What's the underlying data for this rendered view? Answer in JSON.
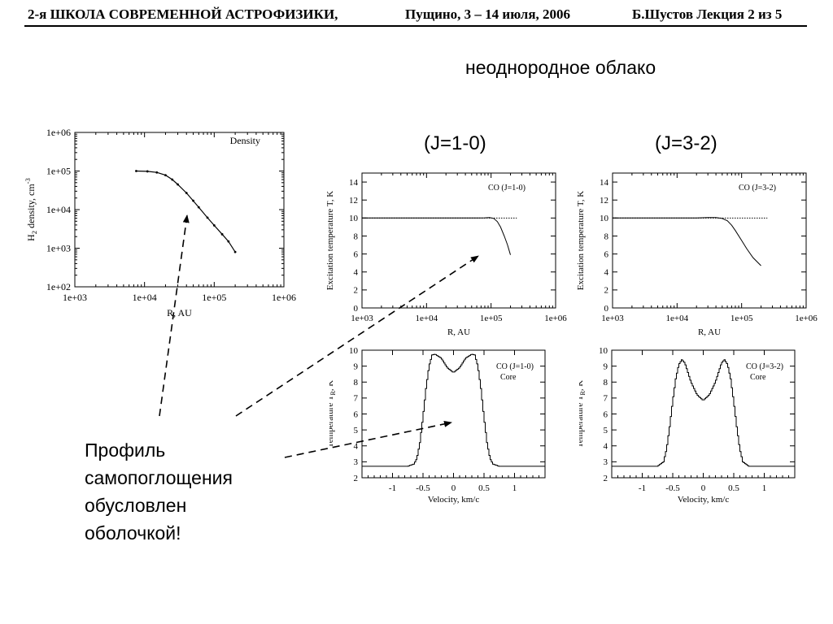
{
  "header": {
    "school": "2-я ШКОЛА СОВРЕМЕННОЙ АСТРОФИЗИКИ,",
    "place_date": "Пущино, 3 – 14 июля, 2006",
    "lecture": "Б.Шустов Лекция 2 из 5"
  },
  "slide_title": "неоднородное облако",
  "panel_titles": {
    "j10": "(J=1-0)",
    "j32": "(J=3-2)"
  },
  "caption": [
    "Профиль",
    "самопоглощения",
    "обусловлен",
    "оболочкой!"
  ],
  "colors": {
    "line": "#000000",
    "background": "#ffffff"
  },
  "chart_data": [
    {
      "id": "density",
      "type": "line",
      "title": "Density",
      "xlabel": "R, AU",
      "ylabel_parts": [
        "H",
        "2",
        " density, cm",
        "-3"
      ],
      "xscale": "log",
      "yscale": "log",
      "xlim": [
        1000,
        1000000
      ],
      "ylim": [
        100,
        1000000
      ],
      "xticks": [
        1000,
        10000,
        100000,
        1000000
      ],
      "xtick_labels": [
        "1e+03",
        "1e+04",
        "1e+05",
        "1e+06"
      ],
      "yticks": [
        100,
        1000,
        10000,
        100000,
        1000000
      ],
      "ytick_labels": [
        "1e+02",
        "1e+03",
        "1e+04",
        "1e+05",
        "1e+06"
      ],
      "series": [
        {
          "values": [
            [
              7600,
              100000
            ],
            [
              11000,
              98000
            ],
            [
              15000,
              92000
            ],
            [
              20000,
              78000
            ],
            [
              25000,
              60000
            ],
            [
              30000,
              45000
            ],
            [
              40000,
              27000
            ],
            [
              50000,
              17000
            ],
            [
              60000,
              11500
            ],
            [
              80000,
              6200
            ],
            [
              100000,
              3900
            ],
            [
              130000,
              2300
            ],
            [
              160000,
              1500
            ],
            [
              200000,
              800
            ]
          ]
        }
      ]
    },
    {
      "id": "tex-j10",
      "type": "line",
      "legend": "CO (J=1-0)",
      "xlabel": "R, AU",
      "ylabel": "Excitation temperature T, K",
      "xscale": "log",
      "xlim": [
        1000,
        1000000
      ],
      "ylim": [
        0,
        15
      ],
      "xticks": [
        1000,
        10000,
        100000,
        1000000
      ],
      "xtick_labels": [
        "1e+03",
        "1e+04",
        "1e+05",
        "1e+06"
      ],
      "yticks": [
        0,
        2,
        4,
        6,
        8,
        10,
        12,
        14
      ],
      "ytick_labels": [
        "0",
        "2",
        "4",
        "6",
        "8",
        "10",
        "12",
        "14"
      ],
      "reference_line": {
        "y": 10,
        "style": "dotted",
        "xmax": 250000
      },
      "series": [
        {
          "values": [
            [
              1000,
              10
            ],
            [
              60000,
              10
            ],
            [
              80000,
              10.02
            ],
            [
              95000,
              10.05
            ],
            [
              110000,
              9.95
            ],
            [
              125000,
              9.6
            ],
            [
              140000,
              9.0
            ],
            [
              160000,
              8.0
            ],
            [
              180000,
              7.0
            ],
            [
              200000,
              5.9
            ]
          ]
        }
      ]
    },
    {
      "id": "tex-j32",
      "type": "line",
      "legend": "CO (J=3-2)",
      "xlabel": "R, AU",
      "ylabel": "Excitation temperature T, K",
      "xscale": "log",
      "xlim": [
        1000,
        1000000
      ],
      "ylim": [
        0,
        15
      ],
      "xticks": [
        1000,
        10000,
        100000,
        1000000
      ],
      "xtick_labels": [
        "1e+03",
        "1e+04",
        "1e+05",
        "1e+06"
      ],
      "yticks": [
        0,
        2,
        4,
        6,
        8,
        10,
        12,
        14
      ],
      "ytick_labels": [
        "0",
        "2",
        "4",
        "6",
        "8",
        "10",
        "12",
        "14"
      ],
      "reference_line": {
        "y": 10,
        "style": "dotted",
        "xmax": 250000
      },
      "series": [
        {
          "values": [
            [
              1000,
              10
            ],
            [
              20000,
              10
            ],
            [
              30000,
              10.05
            ],
            [
              40000,
              10.05
            ],
            [
              50000,
              9.95
            ],
            [
              60000,
              9.7
            ],
            [
              70000,
              9.2
            ],
            [
              80000,
              8.6
            ],
            [
              100000,
              7.5
            ],
            [
              120000,
              6.6
            ],
            [
              150000,
              5.6
            ],
            [
              200000,
              4.7
            ]
          ]
        }
      ]
    },
    {
      "id": "spec-j10",
      "type": "line",
      "legend": [
        "CO (J=1-0)",
        "Core"
      ],
      "xlabel": "Velocity, km/c",
      "ylabel_parts": [
        "Temperature T",
        "R",
        ", K"
      ],
      "xlim": [
        -1.5,
        1.5
      ],
      "ylim": [
        2,
        10
      ],
      "xticks": [
        -1,
        -0.5,
        0,
        0.5,
        1
      ],
      "xtick_labels": [
        "-1",
        "-0.5",
        "0",
        "0.5",
        "1"
      ],
      "yticks": [
        2,
        3,
        4,
        5,
        6,
        7,
        8,
        9,
        10
      ],
      "ytick_labels": [
        "2",
        "3",
        "4",
        "5",
        "6",
        "7",
        "8",
        "9",
        "10"
      ],
      "step": 0.05,
      "series": [
        {
          "values": [
            [
              -1.5,
              2.72
            ],
            [
              -0.75,
              2.72
            ],
            [
              -0.65,
              2.85
            ],
            [
              -0.6,
              3.2
            ],
            [
              -0.55,
              4.2
            ],
            [
              -0.5,
              5.8
            ],
            [
              -0.45,
              7.6
            ],
            [
              -0.4,
              9.0
            ],
            [
              -0.35,
              9.7
            ],
            [
              -0.3,
              9.75
            ],
            [
              -0.2,
              9.5
            ],
            [
              -0.1,
              8.9
            ],
            [
              0,
              8.6
            ],
            [
              0.1,
              8.9
            ],
            [
              0.2,
              9.5
            ],
            [
              0.3,
              9.75
            ],
            [
              0.35,
              9.7
            ],
            [
              0.4,
              9.0
            ],
            [
              0.45,
              7.6
            ],
            [
              0.5,
              5.8
            ],
            [
              0.55,
              4.2
            ],
            [
              0.6,
              3.2
            ],
            [
              0.65,
              2.85
            ],
            [
              0.75,
              2.72
            ],
            [
              1.5,
              2.72
            ]
          ]
        }
      ]
    },
    {
      "id": "spec-j32",
      "type": "line",
      "legend": [
        "CO (J=3-2)",
        "Core"
      ],
      "xlabel": "Velocity, km/c",
      "ylabel_parts": [
        "Temperature T",
        "R",
        ", K"
      ],
      "xlim": [
        -1.5,
        1.5
      ],
      "ylim": [
        2,
        10
      ],
      "xticks": [
        -1,
        -0.5,
        0,
        0.5,
        1
      ],
      "xtick_labels": [
        "-1",
        "-0.5",
        "0",
        "0.5",
        "1"
      ],
      "yticks": [
        2,
        3,
        4,
        5,
        6,
        7,
        8,
        9,
        10
      ],
      "ytick_labels": [
        "2",
        "3",
        "4",
        "5",
        "6",
        "7",
        "8",
        "9",
        "10"
      ],
      "step": 0.05,
      "series": [
        {
          "values": [
            [
              -1.5,
              2.72
            ],
            [
              -0.75,
              2.72
            ],
            [
              -0.65,
              3.0
            ],
            [
              -0.6,
              3.8
            ],
            [
              -0.55,
              5.2
            ],
            [
              -0.5,
              6.8
            ],
            [
              -0.45,
              8.2
            ],
            [
              -0.4,
              9.1
            ],
            [
              -0.35,
              9.4
            ],
            [
              -0.3,
              9.2
            ],
            [
              -0.2,
              8.0
            ],
            [
              -0.1,
              7.2
            ],
            [
              0,
              6.85
            ],
            [
              0.1,
              7.2
            ],
            [
              0.2,
              8.0
            ],
            [
              0.3,
              9.2
            ],
            [
              0.35,
              9.4
            ],
            [
              0.4,
              9.1
            ],
            [
              0.45,
              8.2
            ],
            [
              0.5,
              6.8
            ],
            [
              0.55,
              5.2
            ],
            [
              0.6,
              3.8
            ],
            [
              0.65,
              3.0
            ],
            [
              0.75,
              2.72
            ],
            [
              1.5,
              2.72
            ]
          ]
        }
      ]
    }
  ]
}
